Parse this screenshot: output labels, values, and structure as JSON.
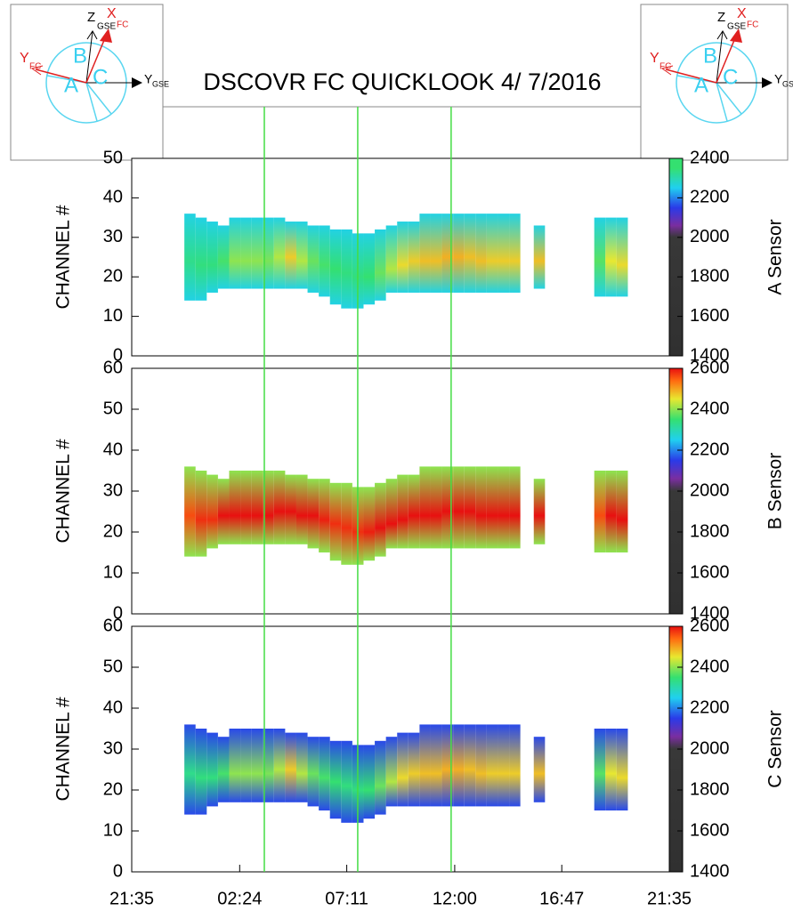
{
  "icon_labels": {
    "z": "Z",
    "x": "X",
    "y": "Y",
    "gse": "GSE",
    "fc": "FC",
    "a": "A",
    "b": "B",
    "c": "C"
  },
  "chart_data": {
    "type": "heatmap",
    "title": "DSCOVR FC QUICKLOOK  4/ 7/2016",
    "y_label": "CHANNEL #",
    "xlim": [
      0,
      24
    ],
    "xticks": [
      {
        "value": 0,
        "label": "21:35"
      },
      {
        "value": 4.82,
        "label": "02:24"
      },
      {
        "value": 9.6,
        "label": "07:11"
      },
      {
        "value": 14.42,
        "label": "12:00"
      },
      {
        "value": 19.2,
        "label": "16:47"
      },
      {
        "value": 24,
        "label": "21:35"
      }
    ],
    "markers": [
      5.92,
      10.09,
      14.26
    ],
    "marker_color": "#44dd44",
    "colorscale": [
      [
        1400,
        "#303030"
      ],
      [
        2000,
        "#383838"
      ],
      [
        2060,
        "#7a2ea0"
      ],
      [
        2150,
        "#2a3ae8"
      ],
      [
        2250,
        "#20d0f0"
      ],
      [
        2350,
        "#34e070"
      ],
      [
        2450,
        "#e8e830"
      ],
      [
        2540,
        "#ff6a10"
      ],
      [
        2600,
        "#e81010"
      ]
    ],
    "x": [
      2.6,
      3.1,
      3.6,
      4.1,
      4.6,
      5.1,
      5.6,
      6.1,
      6.6,
      7.1,
      7.6,
      8.1,
      8.6,
      9.1,
      9.6,
      10.1,
      10.6,
      11.1,
      11.6,
      12.1,
      12.6,
      13.1,
      13.6,
      14.1,
      14.6,
      15.1,
      15.6,
      16.1,
      16.6,
      17.1,
      18.2,
      20.9,
      21.4,
      21.9
    ],
    "low": [
      14,
      14,
      16,
      17,
      17,
      17,
      17,
      17,
      17,
      17,
      17,
      16,
      15,
      13,
      12,
      12,
      13,
      14,
      16,
      16,
      16,
      16,
      16,
      16,
      16,
      16,
      16,
      16,
      16,
      16,
      17,
      15,
      15,
      15
    ],
    "high": [
      36,
      35,
      34,
      33,
      35,
      35,
      35,
      35,
      35,
      34,
      34,
      33,
      33,
      32,
      32,
      31,
      31,
      32,
      33,
      34,
      34,
      36,
      36,
      36,
      36,
      36,
      36,
      36,
      36,
      36,
      33,
      35,
      35,
      35
    ],
    "center": [
      24,
      23,
      23,
      24,
      24,
      24,
      24,
      24,
      25,
      25,
      24,
      24,
      23,
      22,
      21,
      20,
      20,
      21,
      22,
      23,
      24,
      24,
      24,
      25,
      25,
      25,
      24,
      24,
      24,
      24,
      24,
      24,
      24,
      23
    ],
    "panels": [
      {
        "name": "A Sensor",
        "ylim": [
          0,
          50
        ],
        "yticks": [
          0,
          10,
          20,
          30,
          40,
          50
        ],
        "clim": [
          1400,
          2400
        ],
        "cticks": [
          1400,
          1600,
          1800,
          2000,
          2200,
          2400
        ],
        "edge": 2260,
        "peak": [
          2330,
          2340,
          2340,
          2360,
          2400,
          2400,
          2400,
          2390,
          2420,
          2470,
          2420,
          2380,
          2360,
          2350,
          2340,
          2340,
          2350,
          2380,
          2420,
          2460,
          2470,
          2480,
          2480,
          2490,
          2490,
          2480,
          2480,
          2470,
          2470,
          2470,
          2480,
          2370,
          2450,
          2460
        ]
      },
      {
        "name": "B Sensor",
        "ylim": [
          0,
          60
        ],
        "yticks": [
          0,
          10,
          20,
          30,
          40,
          50,
          60
        ],
        "clim": [
          1400,
          2600
        ],
        "cticks": [
          1400,
          1600,
          1800,
          2000,
          2200,
          2400,
          2600
        ],
        "edge": 2400,
        "peak": [
          2560,
          2580,
          2580,
          2600,
          2600,
          2600,
          2600,
          2600,
          2600,
          2600,
          2600,
          2600,
          2590,
          2580,
          2580,
          2580,
          2590,
          2600,
          2600,
          2600,
          2600,
          2600,
          2600,
          2600,
          2600,
          2600,
          2600,
          2600,
          2600,
          2600,
          2600,
          2560,
          2600,
          2600
        ]
      },
      {
        "name": "C Sensor",
        "ylim": [
          0,
          60
        ],
        "yticks": [
          0,
          10,
          20,
          30,
          40,
          50,
          60
        ],
        "clim": [
          1400,
          2600
        ],
        "cticks": [
          1400,
          1600,
          1800,
          2000,
          2200,
          2400,
          2600
        ],
        "edge": 2160,
        "peak": [
          2330,
          2340,
          2340,
          2360,
          2400,
          2400,
          2400,
          2390,
          2420,
          2470,
          2420,
          2380,
          2360,
          2350,
          2340,
          2340,
          2350,
          2380,
          2420,
          2460,
          2470,
          2480,
          2480,
          2490,
          2490,
          2480,
          2480,
          2470,
          2470,
          2470,
          2480,
          2370,
          2450,
          2460
        ]
      }
    ]
  }
}
